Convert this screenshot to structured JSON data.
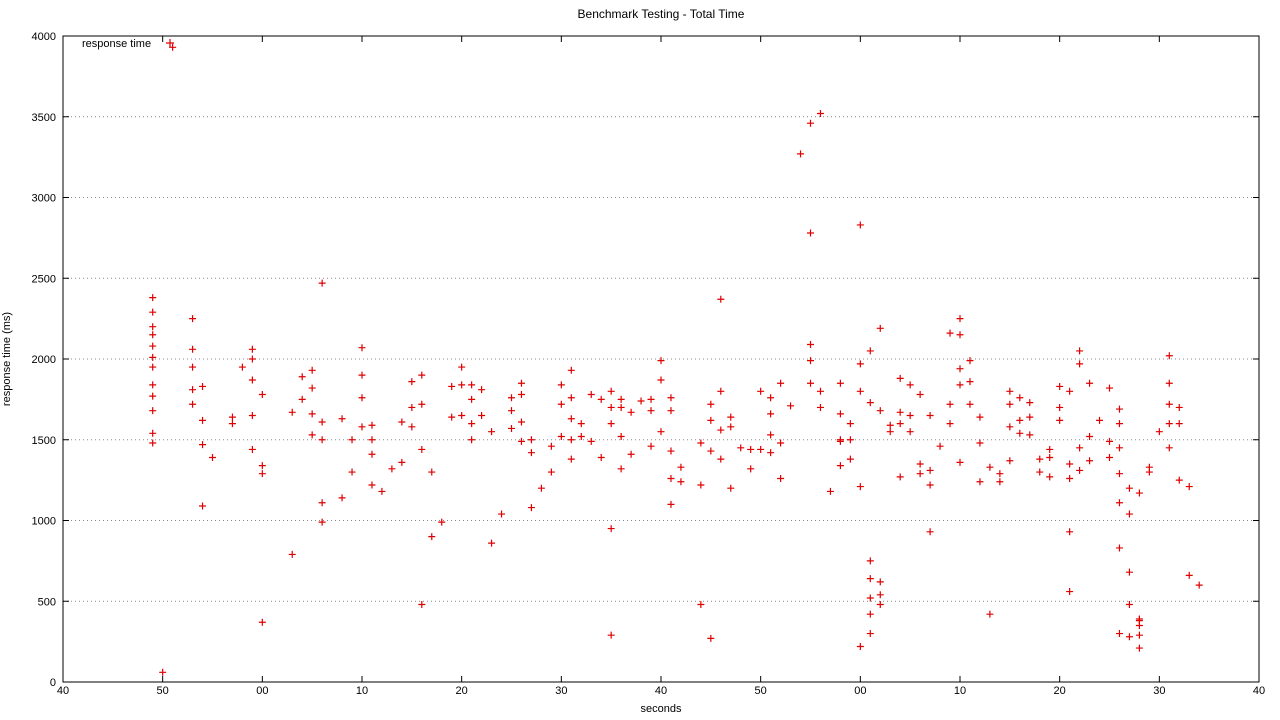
{
  "chart_data": {
    "type": "scatter",
    "title": "Benchmark Testing - Total Time",
    "xlabel": "seconds",
    "ylabel": "response time (ms)",
    "legend": {
      "position": "top-left",
      "label": "response time"
    },
    "grid": true,
    "colors": {
      "series": "#e00000",
      "grid": "#888888",
      "axis": "#000000"
    },
    "ylim": [
      0,
      4000
    ],
    "yticks": [
      0,
      500,
      1000,
      1500,
      2000,
      2500,
      3000,
      3500,
      4000
    ],
    "xlim": [
      0,
      120
    ],
    "xticks": [
      {
        "x": 0,
        "label": "40"
      },
      {
        "x": 10,
        "label": "50"
      },
      {
        "x": 20,
        "label": "00"
      },
      {
        "x": 30,
        "label": "10"
      },
      {
        "x": 40,
        "label": "20"
      },
      {
        "x": 50,
        "label": "30"
      },
      {
        "x": 60,
        "label": "40"
      },
      {
        "x": 70,
        "label": "50"
      },
      {
        "x": 80,
        "label": "00"
      },
      {
        "x": 90,
        "label": "10"
      },
      {
        "x": 100,
        "label": "20"
      },
      {
        "x": 110,
        "label": "30"
      },
      {
        "x": 120,
        "label": "40"
      }
    ],
    "series": [
      {
        "name": "response time",
        "points": [
          [
            9,
            1480
          ],
          [
            9,
            1540
          ],
          [
            9,
            1680
          ],
          [
            9,
            1770
          ],
          [
            9,
            1840
          ],
          [
            9,
            1950
          ],
          [
            9,
            2010
          ],
          [
            9,
            2080
          ],
          [
            9,
            2150
          ],
          [
            9,
            2200
          ],
          [
            9,
            2290
          ],
          [
            9,
            2380
          ],
          [
            10,
            60
          ],
          [
            11,
            3930
          ],
          [
            13,
            2250
          ],
          [
            13,
            1720
          ],
          [
            13,
            1810
          ],
          [
            13,
            1950
          ],
          [
            13,
            2060
          ],
          [
            14,
            1090
          ],
          [
            14,
            1470
          ],
          [
            14,
            1620
          ],
          [
            14,
            1830
          ],
          [
            15,
            1390
          ],
          [
            17,
            1600
          ],
          [
            17,
            1640
          ],
          [
            18,
            1950
          ],
          [
            19,
            1440
          ],
          [
            19,
            1650
          ],
          [
            19,
            1870
          ],
          [
            19,
            2000
          ],
          [
            19,
            2060
          ],
          [
            20,
            1780
          ],
          [
            20,
            1290
          ],
          [
            20,
            1340
          ],
          [
            20,
            370
          ],
          [
            23,
            790
          ],
          [
            23,
            1670
          ],
          [
            24,
            1890
          ],
          [
            24,
            1750
          ],
          [
            25,
            1530
          ],
          [
            25,
            1660
          ],
          [
            25,
            1820
          ],
          [
            25,
            1930
          ],
          [
            26,
            990
          ],
          [
            26,
            1110
          ],
          [
            26,
            1500
          ],
          [
            26,
            1610
          ],
          [
            26,
            2470
          ],
          [
            28,
            1140
          ],
          [
            28,
            1630
          ],
          [
            29,
            1300
          ],
          [
            29,
            1500
          ],
          [
            30,
            1580
          ],
          [
            30,
            1760
          ],
          [
            30,
            1900
          ],
          [
            30,
            2070
          ],
          [
            31,
            1220
          ],
          [
            31,
            1410
          ],
          [
            31,
            1500
          ],
          [
            31,
            1590
          ],
          [
            32,
            1180
          ],
          [
            33,
            1320
          ],
          [
            34,
            1360
          ],
          [
            34,
            1610
          ],
          [
            35,
            1580
          ],
          [
            35,
            1700
          ],
          [
            35,
            1860
          ],
          [
            36,
            480
          ],
          [
            36,
            1440
          ],
          [
            36,
            1720
          ],
          [
            36,
            1900
          ],
          [
            37,
            1300
          ],
          [
            37,
            900
          ],
          [
            38,
            990
          ],
          [
            39,
            1640
          ],
          [
            39,
            1830
          ],
          [
            40,
            1650
          ],
          [
            40,
            1840
          ],
          [
            40,
            1950
          ],
          [
            41,
            1500
          ],
          [
            41,
            1600
          ],
          [
            41,
            1750
          ],
          [
            41,
            1840
          ],
          [
            42,
            1650
          ],
          [
            42,
            1810
          ],
          [
            43,
            860
          ],
          [
            43,
            1550
          ],
          [
            44,
            1040
          ],
          [
            45,
            1570
          ],
          [
            45,
            1680
          ],
          [
            45,
            1760
          ],
          [
            46,
            1490
          ],
          [
            46,
            1610
          ],
          [
            46,
            1780
          ],
          [
            46,
            1850
          ],
          [
            47,
            1080
          ],
          [
            47,
            1420
          ],
          [
            47,
            1500
          ],
          [
            48,
            1200
          ],
          [
            49,
            1460
          ],
          [
            49,
            1300
          ],
          [
            50,
            1520
          ],
          [
            50,
            1720
          ],
          [
            50,
            1840
          ],
          [
            51,
            1380
          ],
          [
            51,
            1500
          ],
          [
            51,
            1630
          ],
          [
            51,
            1760
          ],
          [
            51,
            1930
          ],
          [
            52,
            1520
          ],
          [
            52,
            1600
          ],
          [
            53,
            1490
          ],
          [
            53,
            1780
          ],
          [
            54,
            1390
          ],
          [
            54,
            1750
          ],
          [
            55,
            950
          ],
          [
            55,
            1600
          ],
          [
            55,
            1700
          ],
          [
            55,
            1800
          ],
          [
            56,
            1320
          ],
          [
            56,
            1520
          ],
          [
            56,
            1700
          ],
          [
            56,
            1750
          ],
          [
            57,
            1410
          ],
          [
            57,
            1670
          ],
          [
            58,
            1740
          ],
          [
            59,
            1460
          ],
          [
            59,
            1680
          ],
          [
            59,
            1750
          ],
          [
            60,
            1550
          ],
          [
            60,
            1870
          ],
          [
            60,
            1990
          ],
          [
            61,
            1100
          ],
          [
            61,
            1260
          ],
          [
            61,
            1430
          ],
          [
            61,
            1680
          ],
          [
            61,
            1760
          ],
          [
            62,
            1240
          ],
          [
            62,
            1330
          ],
          [
            64,
            480
          ],
          [
            64,
            1220
          ],
          [
            64,
            1480
          ],
          [
            65,
            1430
          ],
          [
            65,
            1620
          ],
          [
            65,
            1720
          ],
          [
            66,
            1380
          ],
          [
            66,
            1560
          ],
          [
            66,
            1800
          ],
          [
            66,
            2370
          ],
          [
            67,
            1200
          ],
          [
            67,
            1580
          ],
          [
            67,
            1640
          ],
          [
            68,
            1450
          ],
          [
            69,
            1440
          ],
          [
            69,
            1320
          ],
          [
            70,
            1440
          ],
          [
            70,
            1800
          ],
          [
            71,
            1420
          ],
          [
            71,
            1530
          ],
          [
            71,
            1660
          ],
          [
            71,
            1760
          ],
          [
            72,
            1480
          ],
          [
            72,
            1850
          ],
          [
            72,
            1260
          ],
          [
            73,
            1710
          ],
          [
            74,
            3270
          ],
          [
            75,
            2780
          ],
          [
            75,
            3460
          ],
          [
            75,
            1850
          ],
          [
            75,
            1990
          ],
          [
            75,
            2090
          ],
          [
            76,
            1700
          ],
          [
            76,
            1800
          ],
          [
            76,
            3520
          ],
          [
            77,
            1180
          ],
          [
            78,
            1340
          ],
          [
            78,
            1660
          ],
          [
            78,
            1850
          ],
          [
            79,
            1380
          ],
          [
            79,
            1500
          ],
          [
            79,
            1600
          ],
          [
            80,
            1210
          ],
          [
            80,
            1800
          ],
          [
            80,
            1970
          ],
          [
            80,
            2830
          ],
          [
            81,
            1730
          ],
          [
            81,
            2050
          ],
          [
            82,
            1680
          ],
          [
            82,
            2190
          ],
          [
            83,
            1550
          ],
          [
            83,
            1590
          ],
          [
            84,
            1270
          ],
          [
            84,
            1600
          ],
          [
            84,
            1670
          ],
          [
            84,
            1880
          ],
          [
            85,
            1550
          ],
          [
            85,
            1650
          ],
          [
            85,
            1840
          ],
          [
            86,
            1290
          ],
          [
            86,
            1350
          ],
          [
            86,
            1780
          ],
          [
            87,
            930
          ],
          [
            87,
            1220
          ],
          [
            87,
            1310
          ],
          [
            87,
            1650
          ],
          [
            88,
            1460
          ],
          [
            89,
            1600
          ],
          [
            89,
            1720
          ],
          [
            89,
            2160
          ],
          [
            90,
            1360
          ],
          [
            90,
            1840
          ],
          [
            90,
            1940
          ],
          [
            90,
            2150
          ],
          [
            90,
            2250
          ],
          [
            91,
            1720
          ],
          [
            91,
            1860
          ],
          [
            91,
            1990
          ],
          [
            92,
            1240
          ],
          [
            92,
            1480
          ],
          [
            92,
            1640
          ],
          [
            93,
            420
          ],
          [
            93,
            1330
          ],
          [
            94,
            1240
          ],
          [
            94,
            1290
          ],
          [
            95,
            1370
          ],
          [
            95,
            1580
          ],
          [
            95,
            1720
          ],
          [
            95,
            1800
          ],
          [
            96,
            1540
          ],
          [
            96,
            1620
          ],
          [
            96,
            1760
          ],
          [
            97,
            1530
          ],
          [
            97,
            1640
          ],
          [
            97,
            1730
          ],
          [
            98,
            1300
          ],
          [
            98,
            1380
          ],
          [
            99,
            1270
          ],
          [
            99,
            1390
          ],
          [
            99,
            1440
          ],
          [
            100,
            1620
          ],
          [
            100,
            1700
          ],
          [
            100,
            1830
          ],
          [
            101,
            560
          ],
          [
            101,
            930
          ],
          [
            101,
            1260
          ],
          [
            101,
            1350
          ],
          [
            101,
            1800
          ],
          [
            102,
            1310
          ],
          [
            102,
            1450
          ],
          [
            102,
            1970
          ],
          [
            102,
            2050
          ],
          [
            103,
            1370
          ],
          [
            103,
            1520
          ],
          [
            103,
            1850
          ],
          [
            104,
            1620
          ],
          [
            105,
            1390
          ],
          [
            105,
            1490
          ],
          [
            105,
            1820
          ],
          [
            106,
            830
          ],
          [
            106,
            1110
          ],
          [
            106,
            1290
          ],
          [
            106,
            1450
          ],
          [
            106,
            1600
          ],
          [
            106,
            1690
          ],
          [
            107,
            1040
          ],
          [
            107,
            1200
          ],
          [
            107,
            680
          ],
          [
            107,
            480
          ],
          [
            108,
            1170
          ],
          [
            108,
            380
          ],
          [
            109,
            1300
          ],
          [
            109,
            1330
          ],
          [
            110,
            1550
          ],
          [
            111,
            1450
          ],
          [
            111,
            1600
          ],
          [
            111,
            1720
          ],
          [
            111,
            1850
          ],
          [
            111,
            2020
          ],
          [
            112,
            1250
          ],
          [
            112,
            1600
          ],
          [
            112,
            1700
          ],
          [
            113,
            1210
          ],
          [
            113,
            660
          ],
          [
            114,
            600
          ],
          [
            78,
            1500
          ],
          [
            78,
            1490
          ],
          [
            80,
            220
          ],
          [
            81,
            300
          ],
          [
            81,
            420
          ],
          [
            81,
            520
          ],
          [
            81,
            640
          ],
          [
            81,
            750
          ],
          [
            82,
            480
          ],
          [
            82,
            540
          ],
          [
            82,
            620
          ],
          [
            106,
            300
          ],
          [
            107,
            280
          ],
          [
            108,
            210
          ],
          [
            108,
            290
          ],
          [
            108,
            350
          ],
          [
            108,
            390
          ],
          [
            55,
            290
          ],
          [
            65,
            270
          ]
        ]
      }
    ]
  }
}
